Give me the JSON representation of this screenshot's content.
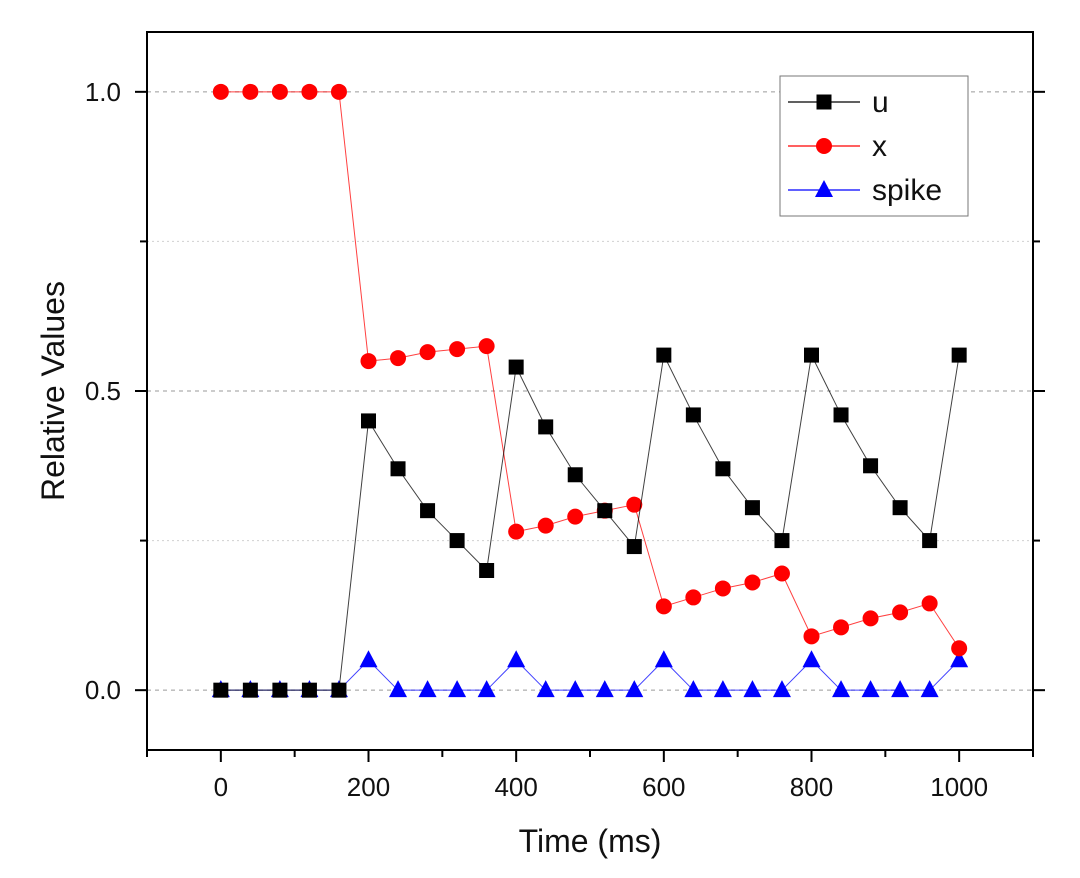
{
  "chart_data": {
    "type": "line",
    "title": "",
    "xlabel": "Time (ms)",
    "ylabel": "Relative Values",
    "xlim": [
      -100,
      1100
    ],
    "ylim": [
      -0.1,
      1.1
    ],
    "xticks": [
      0,
      200,
      400,
      600,
      800,
      1000
    ],
    "xtick_labels": [
      "0",
      "200",
      "400",
      "600",
      "800",
      "1000"
    ],
    "yticks": [
      0.0,
      0.5,
      1.0
    ],
    "ytick_labels": [
      "0.0",
      "0.5",
      "1.0"
    ],
    "y_minor_ticks": [
      0.25,
      0.75
    ],
    "grid": true,
    "legend_position": "top-right",
    "x": [
      0,
      40,
      80,
      120,
      160,
      200,
      240,
      280,
      320,
      360,
      400,
      440,
      480,
      520,
      560,
      600,
      640,
      680,
      720,
      760,
      800,
      840,
      880,
      920,
      960,
      1000
    ],
    "series": [
      {
        "name": "u",
        "color": "#000000",
        "marker": "square",
        "values": [
          0,
          0,
          0,
          0,
          0,
          0.45,
          0.37,
          0.3,
          0.25,
          0.2,
          0.54,
          0.44,
          0.36,
          0.3,
          0.24,
          0.56,
          0.46,
          0.37,
          0.305,
          0.25,
          0.56,
          0.46,
          0.375,
          0.305,
          0.25,
          0.56
        ]
      },
      {
        "name": "x",
        "color": "#ff0000",
        "marker": "circle",
        "values": [
          1.0,
          1.0,
          1.0,
          1.0,
          1.0,
          0.55,
          0.555,
          0.565,
          0.57,
          0.575,
          0.265,
          0.275,
          0.29,
          0.3,
          0.31,
          0.14,
          0.155,
          0.17,
          0.18,
          0.195,
          0.09,
          0.105,
          0.12,
          0.13,
          0.145,
          0.07
        ]
      },
      {
        "name": "spike",
        "color": "#0000ff",
        "marker": "triangle",
        "values": [
          0,
          0,
          0,
          0,
          0,
          0.05,
          0,
          0,
          0,
          0,
          0.05,
          0,
          0,
          0,
          0,
          0.05,
          0,
          0,
          0,
          0,
          0.05,
          0,
          0,
          0,
          0,
          0.05
        ]
      }
    ]
  }
}
